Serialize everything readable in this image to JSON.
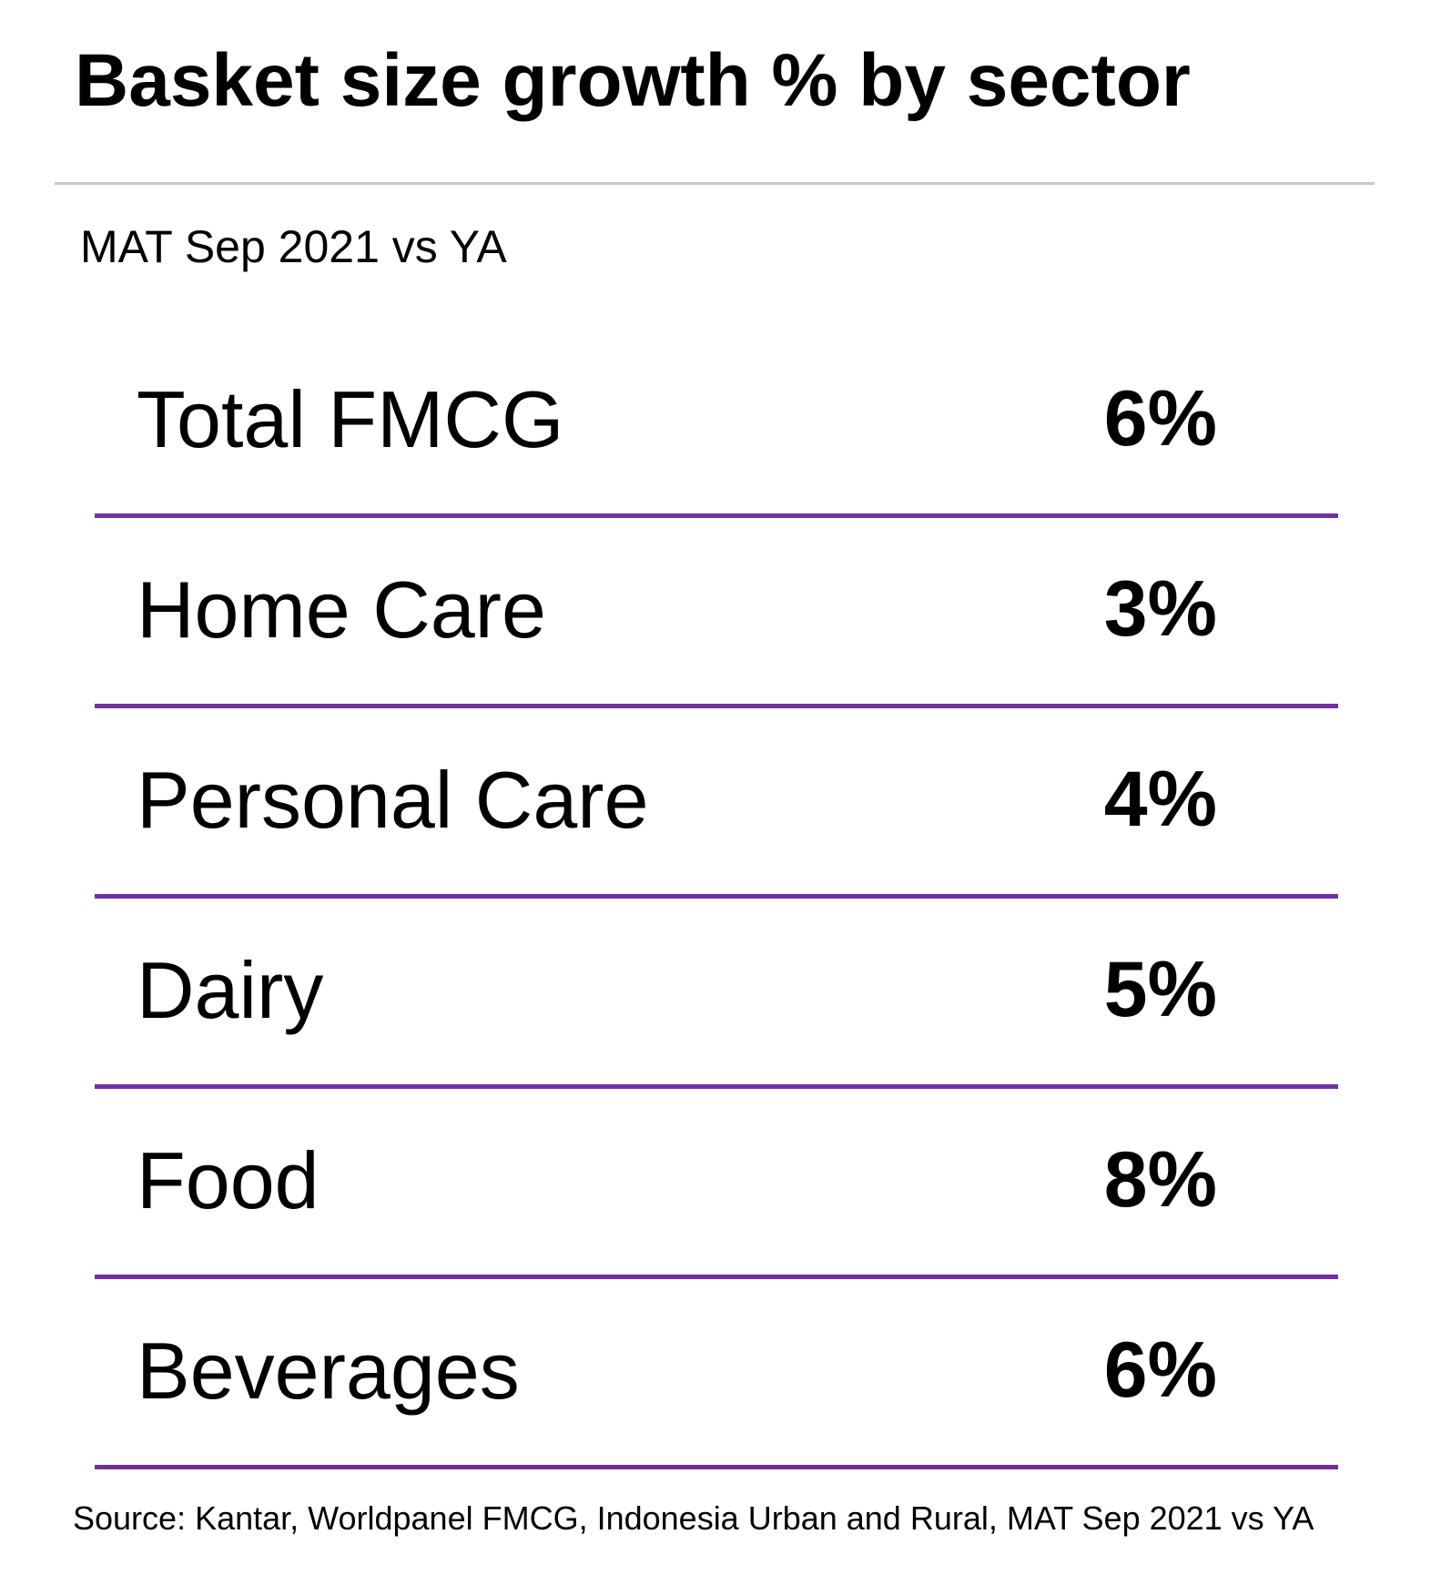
{
  "title": "Basket size growth % by sector",
  "subtitle": "MAT Sep 2021 vs YA",
  "source": "Source: Kantar, Worldpanel FMCG, Indonesia Urban and Rural, MAT Sep 2021 vs YA",
  "colors": {
    "rule": "#7030a0",
    "title_rule": "#c8c8c8",
    "text": "#000000"
  },
  "chart_data": {
    "type": "table",
    "title": "Basket size growth % by sector",
    "subtitle": "MAT Sep 2021 vs YA",
    "categories": [
      "Total FMCG",
      "Home Care",
      "Personal Care",
      "Dairy",
      "Food",
      "Beverages"
    ],
    "values": [
      6,
      3,
      4,
      5,
      8,
      6
    ],
    "value_labels": [
      "6%",
      "3%",
      "4%",
      "5%",
      "8%",
      "6%"
    ]
  }
}
